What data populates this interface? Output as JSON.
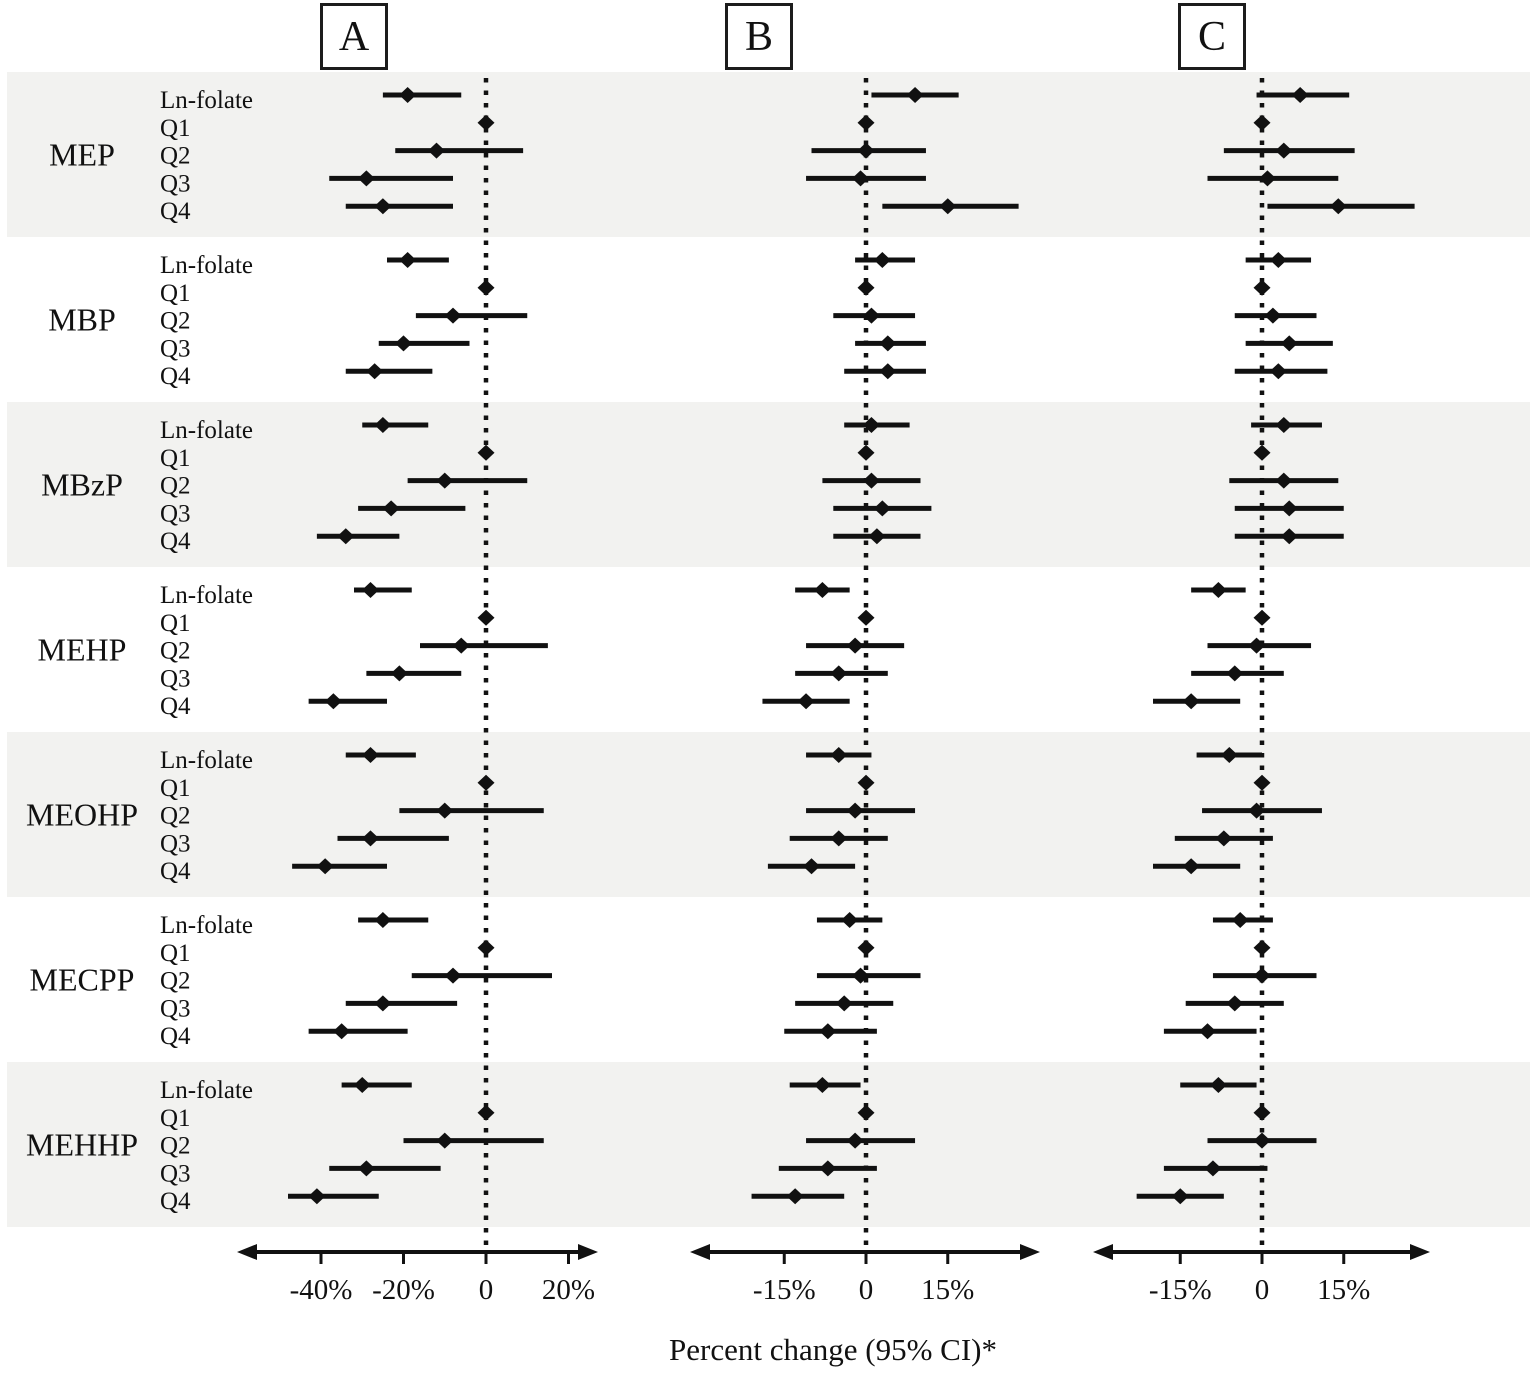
{
  "figure": {
    "axis_title": "Percent change  (95% CI)*"
  },
  "chart_data": {
    "type": "forest",
    "title": "Percent change  (95% CI)*",
    "unit": "percent change with 95% confidence interval",
    "row_labels": [
      "Ln-folate",
      "Q1",
      "Q2",
      "Q3",
      "Q4"
    ],
    "sections": [
      "MEP",
      "MBP",
      "MBzP",
      "MEHP",
      "MEOHP",
      "MECPP",
      "MEHHP"
    ],
    "shaded_sections": [
      "MEP",
      "MBzP",
      "MEOHP",
      "MEHHP"
    ],
    "reference_row": "Q1",
    "zero_line_style": "dotted",
    "band_color": "#f2f2f0",
    "line_color": "#111111",
    "legend_position": "none",
    "grid": false,
    "panels": [
      {
        "label": "A",
        "x_ticks": [
          -40,
          -20,
          0,
          20
        ],
        "x_tick_labels": [
          "-40%",
          "-20%",
          "0",
          "20%"
        ],
        "x_range": [
          -60,
          27
        ],
        "estimates": {
          "MEP": [
            [
              -19,
              -25,
              -6
            ],
            [
              0,
              0,
              0
            ],
            [
              -12,
              -22,
              9
            ],
            [
              -29,
              -38,
              -8
            ],
            [
              -25,
              -34,
              -8
            ]
          ],
          "MBP": [
            [
              -19,
              -24,
              -9
            ],
            [
              0,
              0,
              0
            ],
            [
              -8,
              -17,
              10
            ],
            [
              -20,
              -26,
              -4
            ],
            [
              -27,
              -34,
              -13
            ]
          ],
          "MBzP": [
            [
              -25,
              -30,
              -14
            ],
            [
              0,
              0,
              0
            ],
            [
              -10,
              -19,
              10
            ],
            [
              -23,
              -31,
              -5
            ],
            [
              -34,
              -41,
              -21
            ]
          ],
          "MEHP": [
            [
              -28,
              -32,
              -18
            ],
            [
              0,
              0,
              0
            ],
            [
              -6,
              -16,
              15
            ],
            [
              -21,
              -29,
              -6
            ],
            [
              -37,
              -43,
              -24
            ]
          ],
          "MEOHP": [
            [
              -28,
              -34,
              -17
            ],
            [
              0,
              0,
              0
            ],
            [
              -10,
              -21,
              14
            ],
            [
              -28,
              -36,
              -9
            ],
            [
              -39,
              -47,
              -24
            ]
          ],
          "MECPP": [
            [
              -25,
              -31,
              -14
            ],
            [
              0,
              0,
              0
            ],
            [
              -8,
              -18,
              16
            ],
            [
              -25,
              -34,
              -7
            ],
            [
              -35,
              -43,
              -19
            ]
          ],
          "MEHHP": [
            [
              -30,
              -35,
              -18
            ],
            [
              0,
              0,
              0
            ],
            [
              -10,
              -20,
              14
            ],
            [
              -29,
              -38,
              -11
            ],
            [
              -41,
              -48,
              -26
            ]
          ]
        }
      },
      {
        "label": "B",
        "x_ticks": [
          -15,
          0,
          15
        ],
        "x_tick_labels": [
          "-15%",
          "0",
          "15%"
        ],
        "x_range": [
          -32,
          32
        ],
        "estimates": {
          "MEP": [
            [
              9,
              1,
              17
            ],
            [
              0,
              0,
              0
            ],
            [
              0,
              -10,
              11
            ],
            [
              -1,
              -11,
              11
            ],
            [
              15,
              3,
              28
            ]
          ],
          "MBP": [
            [
              3,
              -2,
              9
            ],
            [
              0,
              0,
              0
            ],
            [
              1,
              -6,
              9
            ],
            [
              4,
              -2,
              11
            ],
            [
              4,
              -4,
              11
            ]
          ],
          "MBzP": [
            [
              1,
              -4,
              8
            ],
            [
              0,
              0,
              0
            ],
            [
              1,
              -8,
              10
            ],
            [
              3,
              -6,
              12
            ],
            [
              2,
              -6,
              10
            ]
          ],
          "MEHP": [
            [
              -8,
              -13,
              -3
            ],
            [
              0,
              0,
              0
            ],
            [
              -2,
              -11,
              7
            ],
            [
              -5,
              -13,
              4
            ],
            [
              -11,
              -19,
              -3
            ]
          ],
          "MEOHP": [
            [
              -5,
              -11,
              1
            ],
            [
              0,
              0,
              0
            ],
            [
              -2,
              -11,
              9
            ],
            [
              -5,
              -14,
              4
            ],
            [
              -10,
              -18,
              -2
            ]
          ],
          "MECPP": [
            [
              -3,
              -9,
              3
            ],
            [
              0,
              0,
              0
            ],
            [
              -1,
              -9,
              10
            ],
            [
              -4,
              -13,
              5
            ],
            [
              -7,
              -15,
              2
            ]
          ],
          "MEHHP": [
            [
              -8,
              -14,
              -1
            ],
            [
              0,
              0,
              0
            ],
            [
              -2,
              -11,
              9
            ],
            [
              -7,
              -16,
              2
            ],
            [
              -13,
              -21,
              -4
            ]
          ]
        }
      },
      {
        "label": "C",
        "x_ticks": [
          -15,
          0,
          15
        ],
        "x_tick_labels": [
          "-15%",
          "0",
          "15%"
        ],
        "x_range": [
          -31,
          31
        ],
        "estimates": {
          "MEP": [
            [
              7,
              -1,
              16
            ],
            [
              0,
              0,
              0
            ],
            [
              4,
              -7,
              17
            ],
            [
              1,
              -10,
              14
            ],
            [
              14,
              1,
              28
            ]
          ],
          "MBP": [
            [
              3,
              -3,
              9
            ],
            [
              0,
              0,
              0
            ],
            [
              2,
              -5,
              10
            ],
            [
              5,
              -3,
              13
            ],
            [
              3,
              -5,
              12
            ]
          ],
          "MBzP": [
            [
              4,
              -2,
              11
            ],
            [
              0,
              0,
              0
            ],
            [
              4,
              -6,
              14
            ],
            [
              5,
              -5,
              15
            ],
            [
              5,
              -5,
              15
            ]
          ],
          "MEHP": [
            [
              -8,
              -13,
              -3
            ],
            [
              0,
              0,
              0
            ],
            [
              -1,
              -10,
              9
            ],
            [
              -5,
              -13,
              4
            ],
            [
              -13,
              -20,
              -4
            ]
          ],
          "MEOHP": [
            [
              -6,
              -12,
              0
            ],
            [
              0,
              0,
              0
            ],
            [
              -1,
              -11,
              11
            ],
            [
              -7,
              -16,
              2
            ],
            [
              -13,
              -20,
              -4
            ]
          ],
          "MECPP": [
            [
              -4,
              -9,
              2
            ],
            [
              0,
              0,
              0
            ],
            [
              0,
              -9,
              10
            ],
            [
              -5,
              -14,
              4
            ],
            [
              -10,
              -18,
              -1
            ]
          ],
          "MEHHP": [
            [
              -8,
              -15,
              -1
            ],
            [
              0,
              0,
              0
            ],
            [
              0,
              -10,
              10
            ],
            [
              -9,
              -18,
              1
            ],
            [
              -15,
              -23,
              -7
            ]
          ]
        }
      }
    ]
  }
}
